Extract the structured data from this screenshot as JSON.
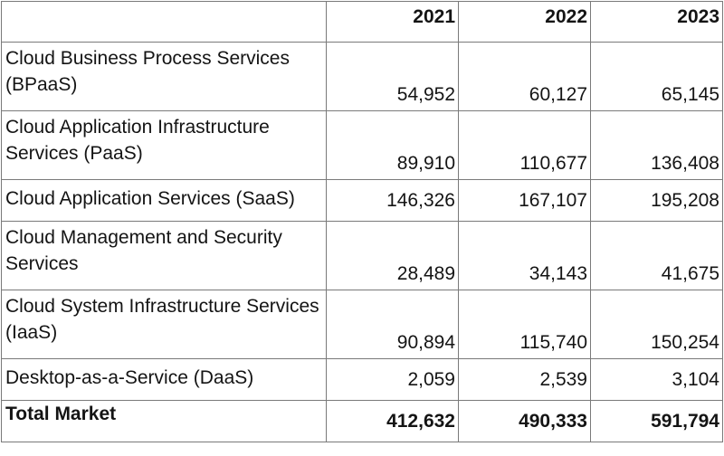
{
  "chart_data": {
    "type": "table",
    "columns": [
      "",
      "2021",
      "2022",
      "2023"
    ],
    "rows": [
      {
        "label": "Cloud Business Process Services (BPaaS)",
        "values": [
          "54,952",
          "60,127",
          "65,145"
        ]
      },
      {
        "label": "Cloud Application Infrastructure Services (PaaS)",
        "values": [
          "89,910",
          "110,677",
          "136,408"
        ]
      },
      {
        "label": "Cloud Application Services (SaaS)",
        "values": [
          "146,326",
          "167,107",
          "195,208"
        ]
      },
      {
        "label": "Cloud Management and Security Services",
        "values": [
          "28,489",
          "34,143",
          "41,675"
        ]
      },
      {
        "label": "Cloud System Infrastructure Services (IaaS)",
        "values": [
          "90,894",
          "115,740",
          "150,254"
        ]
      },
      {
        "label": "Desktop-as-a-Service (DaaS)",
        "values": [
          "2,059",
          "2,539",
          "3,104"
        ]
      }
    ],
    "total": {
      "label": "Total Market",
      "values": [
        "412,632",
        "490,333",
        "591,794"
      ]
    }
  }
}
